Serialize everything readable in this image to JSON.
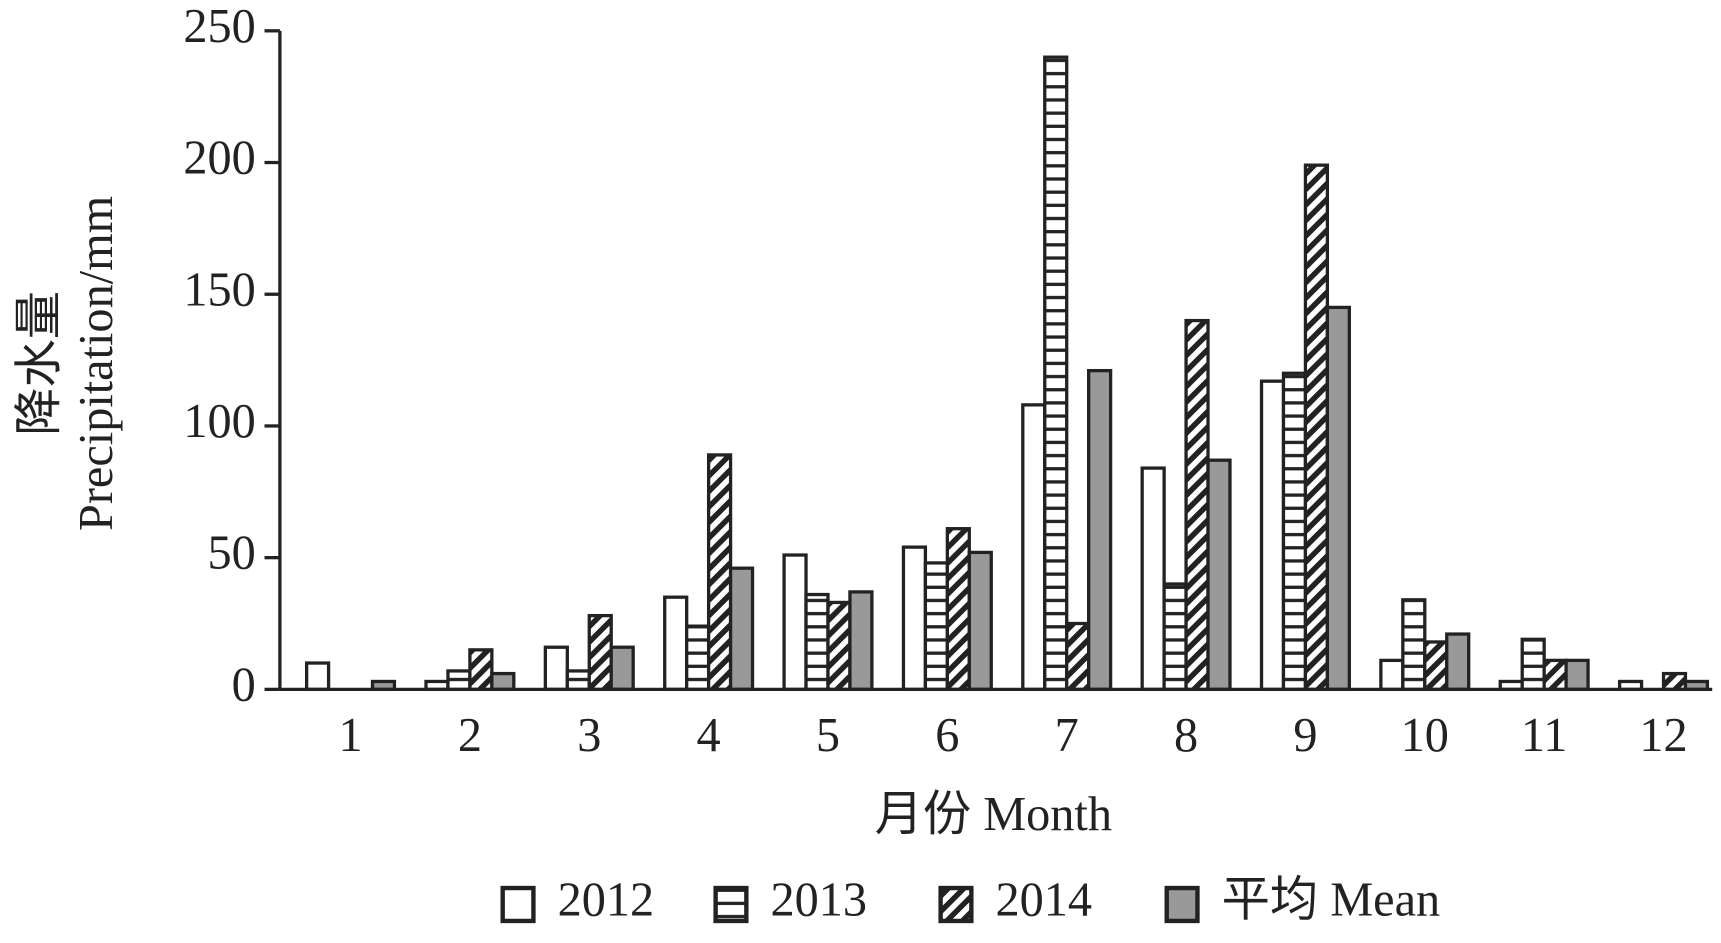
{
  "chart_data": {
    "type": "bar",
    "x_label": "月份 Month",
    "y_label": [
      "降水量",
      "Precipitation/mm"
    ],
    "categories": [
      "1",
      "2",
      "3",
      "4",
      "5",
      "6",
      "7",
      "8",
      "9",
      "10",
      "11",
      "12"
    ],
    "series": [
      {
        "name": "2012",
        "color": "#ffffff",
        "pattern": "solid",
        "values": [
          10,
          3,
          16,
          35,
          51,
          54,
          108,
          84,
          117,
          11,
          3,
          3
        ]
      },
      {
        "name": "2013",
        "color": "#ffffff",
        "pattern": "horizontal",
        "values": [
          0,
          7,
          7,
          24,
          36,
          48,
          240,
          40,
          120,
          34,
          19,
          0
        ]
      },
      {
        "name": "2014",
        "color": "#ffffff",
        "pattern": "diagonal",
        "values": [
          0,
          15,
          28,
          89,
          33,
          61,
          25,
          140,
          199,
          18,
          11,
          6
        ]
      },
      {
        "name": "平均 Mean",
        "color": "#999999",
        "pattern": "solid",
        "values": [
          3,
          6,
          16,
          46,
          37,
          52,
          121,
          87,
          145,
          21,
          11,
          3
        ]
      }
    ],
    "ylim": [
      0,
      250
    ],
    "yticks": [
      0,
      50,
      100,
      150,
      200,
      250
    ],
    "grid": false,
    "legend": "bottom"
  }
}
